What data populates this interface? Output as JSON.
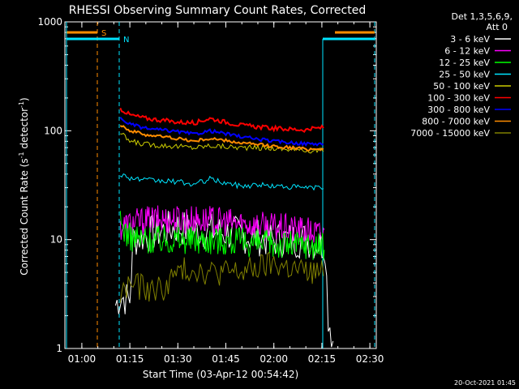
{
  "chart_data": {
    "type": "line",
    "title": "RHESSI Observing Summary Count Rates, Corrected",
    "xlabel": "Start Time (03-Apr-12 00:54:42)",
    "ylabel_main": "Corrected Count Rate (s",
    "ylabel_sup1": "-1",
    "ylabel_mid": " detector",
    "ylabel_sup2": "-1",
    "ylabel_end": ")",
    "yscale": "log",
    "ylim": [
      1,
      1000
    ],
    "xlim": [
      "00:54:42",
      "02:32:00"
    ],
    "xticks": [
      "01:00",
      "01:15",
      "01:30",
      "01:45",
      "02:00",
      "02:15",
      "02:30"
    ],
    "yticks": [
      "1",
      "10",
      "100",
      "1000"
    ],
    "grid": false,
    "legend_position": "right",
    "legend_header": [
      "Det 1,3,5,6,9,",
      "Att 0"
    ],
    "markers": [
      {
        "label": "S",
        "color": "#ff8c00"
      },
      {
        "label": "N",
        "color": "#00e5ff"
      }
    ],
    "series": [
      {
        "name": "3 - 6 keV",
        "color": "#ffffff",
        "points": [
          [
            70.5,
            2.5
          ],
          [
            72,
            3
          ],
          [
            75,
            2.8
          ],
          [
            76,
            10
          ],
          [
            80,
            11
          ],
          [
            85,
            12
          ],
          [
            90,
            13
          ],
          [
            95,
            12
          ],
          [
            100,
            12
          ],
          [
            110,
            11
          ],
          [
            120,
            10
          ],
          [
            130,
            10
          ],
          [
            136,
            9
          ],
          [
            137,
            2
          ],
          [
            139,
            1
          ]
        ]
      },
      {
        "name": "6 - 12 keV",
        "color": "#ff00ff",
        "points": [
          [
            72,
            13
          ],
          [
            75,
            14
          ],
          [
            80,
            15
          ],
          [
            90,
            15.5
          ],
          [
            100,
            15
          ],
          [
            110,
            14
          ],
          [
            120,
            13
          ],
          [
            130,
            12
          ],
          [
            136,
            11
          ]
        ]
      },
      {
        "name": "12 - 25 keV",
        "color": "#00ff00",
        "points": [
          [
            72,
            14
          ],
          [
            75,
            10.5
          ],
          [
            80,
            10
          ],
          [
            90,
            10
          ],
          [
            100,
            10
          ],
          [
            110,
            9.5
          ],
          [
            120,
            9
          ],
          [
            130,
            9
          ],
          [
            136,
            8.5
          ]
        ]
      },
      {
        "name": "25 - 50 keV",
        "color": "#00e5ff",
        "points": [
          [
            72,
            40
          ],
          [
            75,
            37
          ],
          [
            80,
            35
          ],
          [
            90,
            34
          ],
          [
            95,
            32
          ],
          [
            100,
            36
          ],
          [
            105,
            33
          ],
          [
            110,
            31
          ],
          [
            115,
            32
          ],
          [
            120,
            31
          ],
          [
            130,
            30
          ],
          [
            136,
            30
          ]
        ]
      },
      {
        "name": "50 - 100 keV",
        "color": "#cccc00",
        "points": [
          [
            72,
            95
          ],
          [
            75,
            80
          ],
          [
            80,
            75
          ],
          [
            90,
            72
          ],
          [
            95,
            70
          ],
          [
            100,
            73
          ],
          [
            110,
            70
          ],
          [
            120,
            69
          ],
          [
            130,
            66
          ],
          [
            136,
            66
          ]
        ]
      },
      {
        "name": "100 - 300 keV",
        "color": "#ff0000",
        "points": [
          [
            72,
            160
          ],
          [
            75,
            140
          ],
          [
            80,
            130
          ],
          [
            90,
            120
          ],
          [
            95,
            118
          ],
          [
            100,
            130
          ],
          [
            105,
            120
          ],
          [
            110,
            112
          ],
          [
            120,
            105
          ],
          [
            130,
            102
          ],
          [
            136,
            108
          ]
        ]
      },
      {
        "name": "300 - 800 keV",
        "color": "#0000ff",
        "points": [
          [
            72,
            130
          ],
          [
            75,
            115
          ],
          [
            80,
            105
          ],
          [
            90,
            98
          ],
          [
            95,
            93
          ],
          [
            100,
            100
          ],
          [
            110,
            88
          ],
          [
            120,
            80
          ],
          [
            130,
            76
          ],
          [
            136,
            76
          ]
        ]
      },
      {
        "name": "800 - 7000 keV",
        "color": "#ff8c00",
        "points": [
          [
            72,
            115
          ],
          [
            75,
            100
          ],
          [
            80,
            92
          ],
          [
            90,
            85
          ],
          [
            95,
            80
          ],
          [
            100,
            85
          ],
          [
            110,
            77
          ],
          [
            120,
            72
          ],
          [
            130,
            68
          ],
          [
            136,
            68
          ]
        ]
      },
      {
        "name": "7000 - 15000 keV",
        "color": "#808000",
        "points": [
          [
            72,
            3
          ],
          [
            75,
            4
          ],
          [
            80,
            3.5
          ],
          [
            85,
            3.5
          ],
          [
            90,
            5
          ],
          [
            95,
            5.5
          ],
          [
            100,
            5
          ],
          [
            110,
            5
          ],
          [
            120,
            6
          ],
          [
            130,
            5
          ],
          [
            136,
            5
          ]
        ]
      }
    ]
  },
  "footer": {
    "timestamp": "20-Oct-2021 01:45"
  }
}
